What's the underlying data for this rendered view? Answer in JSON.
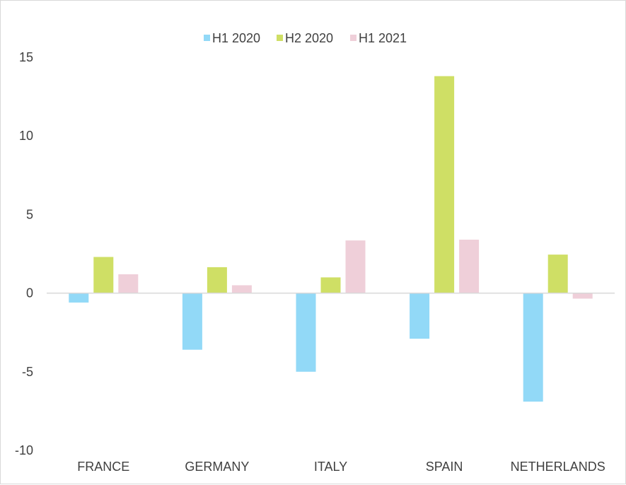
{
  "chart_data": {
    "type": "bar",
    "title": "",
    "xlabel": "",
    "ylabel": "",
    "categories": [
      "FRANCE",
      "GERMANY",
      "ITALY",
      "SPAIN",
      "NETHERLANDS"
    ],
    "series": [
      {
        "name": "H1 2020",
        "color": "#92d9f7",
        "values": [
          -0.6,
          -3.6,
          -5.0,
          -2.9,
          -6.9
        ]
      },
      {
        "name": "H2 2020",
        "color": "#cfdf65",
        "values": [
          2.3,
          1.65,
          1.0,
          13.8,
          2.45
        ]
      },
      {
        "name": "H1 2021",
        "color": "#efcfd9",
        "values": [
          1.2,
          0.5,
          3.35,
          3.4,
          -0.35
        ]
      }
    ],
    "ylim": [
      -10,
      15
    ],
    "yticks": [
      15,
      10,
      5,
      0,
      -5,
      -10
    ],
    "grid": false,
    "legend_position": "top-center"
  }
}
